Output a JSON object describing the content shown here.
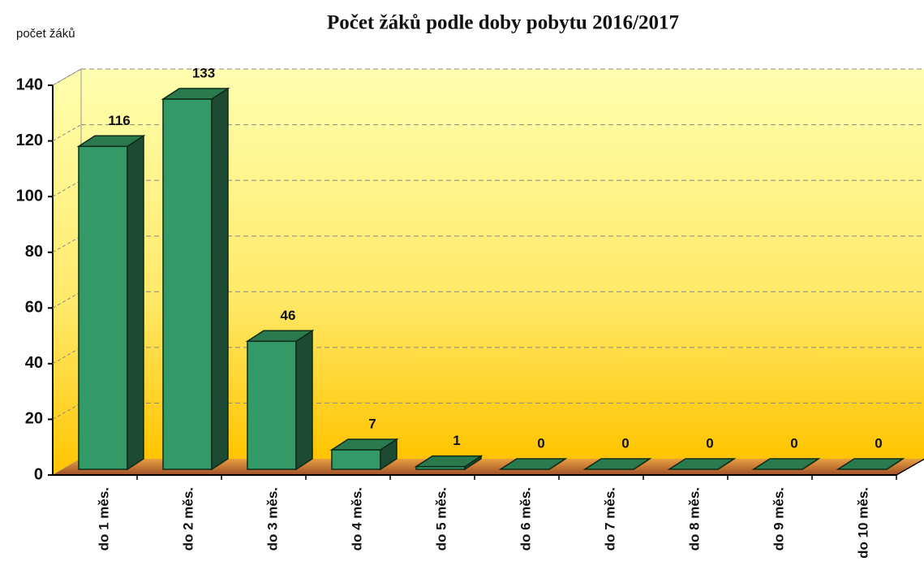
{
  "chart_data": {
    "type": "bar3d",
    "title": "Počet žáků podle doby pobytu 2016/2017",
    "y_label": "počet žáků",
    "categories": [
      "do 1 měs.",
      "do 2 měs.",
      "do 3 měs.",
      "do 4 měs.",
      "do 5 měs.",
      "do 6 měs.",
      "do 7 měs.",
      "do 8 měs.",
      "do 9 měs.",
      "do 10 měs."
    ],
    "values": [
      116,
      133,
      46,
      7,
      1,
      0,
      0,
      0,
      0,
      0
    ],
    "color": "#339966",
    "ylim": [
      0,
      140
    ],
    "yticks": [
      0,
      20,
      40,
      60,
      80,
      100,
      120,
      140
    ],
    "grid": true
  }
}
